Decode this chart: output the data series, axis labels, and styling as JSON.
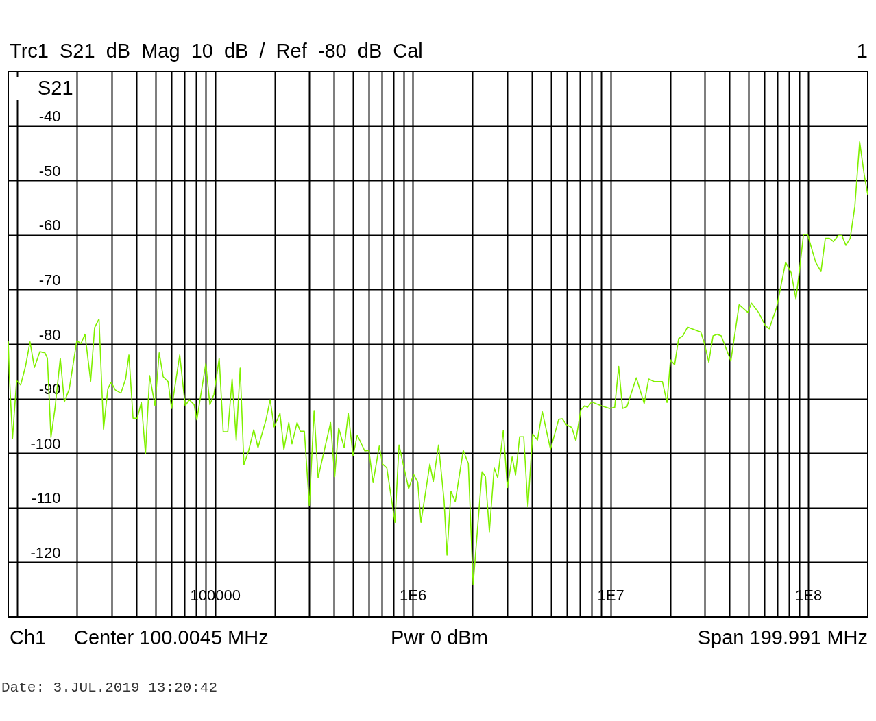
{
  "chart_data": {
    "type": "line",
    "title": "Trc1 S21 dB Mag 10 dB / Ref -80 dB Cal",
    "annotations": [
      "1",
      "Ch1",
      "Center 100.0045 MHz",
      "Pwr 0 dBm",
      "Span 199.991 MHz",
      "Date: 3.JUL.2019 13:20:42"
    ],
    "log": "x",
    "grid": true,
    "legend": "top left",
    "marker": "none",
    "line_style": "solid",
    "xlim": [
      9000,
      200000000
    ],
    "xticks": [
      {
        "value": 10000,
        "label": null
      },
      {
        "value": 20000,
        "label": null
      },
      {
        "value": 30000,
        "label": null
      },
      {
        "value": 40000,
        "label": null
      },
      {
        "value": 50000,
        "label": null
      },
      {
        "value": 60000,
        "label": null
      },
      {
        "value": 70000,
        "label": null
      },
      {
        "value": 80000,
        "label": null
      },
      {
        "value": 90000,
        "label": null
      },
      100000,
      {
        "value": 200000,
        "label": null
      },
      {
        "value": 300000,
        "label": null
      },
      {
        "value": 400000,
        "label": null
      },
      {
        "value": 500000,
        "label": null
      },
      {
        "value": 600000,
        "label": null
      },
      {
        "value": 700000,
        "label": null
      },
      {
        "value": 800000,
        "label": null
      },
      {
        "value": 900000,
        "label": null
      },
      {
        "value": 1000000,
        "label": "1E6"
      },
      {
        "value": 2000000,
        "label": null
      },
      {
        "value": 3000000,
        "label": null
      },
      {
        "value": 4000000,
        "label": null
      },
      {
        "value": 5000000,
        "label": null
      },
      {
        "value": 6000000,
        "label": null
      },
      {
        "value": 7000000,
        "label": null
      },
      {
        "value": 8000000,
        "label": null
      },
      {
        "value": 9000000,
        "label": null
      },
      {
        "value": 10000000,
        "label": "1E7"
      },
      {
        "value": 20000000,
        "label": null
      },
      {
        "value": 30000000,
        "label": null
      },
      {
        "value": 40000000,
        "label": null
      },
      {
        "value": 50000000,
        "label": null
      },
      {
        "value": 60000000,
        "label": null
      },
      {
        "value": 70000000,
        "label": null
      },
      {
        "value": 80000000,
        "label": null
      },
      {
        "value": 90000000,
        "label": null
      },
      {
        "value": 100000000,
        "label": "1E8"
      }
    ],
    "ylim": [
      -130,
      -30
    ],
    "yticks": [
      -120,
      -110,
      -100,
      -90,
      -80,
      -70,
      -60,
      -50,
      -40
    ],
    "x": [
      9000,
      9110,
      9460,
      9690,
      9920,
      10400,
      11000,
      11600,
      12200,
      13000,
      13800,
      14200,
      14800,
      15500,
      16500,
      17300,
      18300,
      20000,
      21000,
      22000,
      23500,
      24600,
      25900,
      27300,
      28700,
      29800,
      31300,
      33400,
      35300,
      36700,
      38500,
      40400,
      42400,
      44500,
      46700,
      49700,
      52200,
      54700,
      57900,
      60300,
      66300,
      70700,
      74100,
      78400,
      80900,
      89800,
      94200,
      98800,
      105000,
      110000,
      116000,
      122000,
      128000,
      134000,
      140000,
      148000,
      157000,
      165000,
      181000,
      190000,
      199000,
      213000,
      223000,
      236000,
      245000,
      260000,
      270000,
      283000,
      300000,
      317000,
      332000,
      384000,
      403000,
      422000,
      450000,
      472000,
      499000,
      524000,
      572000,
      600000,
      630000,
      677000,
      704000,
      739000,
      813000,
      852000,
      953000,
      1010000,
      1060000,
      1100000,
      1220000,
      1270000,
      1350000,
      1440000,
      1490000,
      1560000,
      1640000,
      1800000,
      1910000,
      2020000,
      2240000,
      2330000,
      2440000,
      2580000,
      2690000,
      2870000,
      3010000,
      3180000,
      3310000,
      3470000,
      3640000,
      3820000,
      4040000,
      4270000,
      4520000,
      4970000,
      5470000,
      5700000,
      5980000,
      6370000,
      6680000,
      7070000,
      7410000,
      7650000,
      8030000,
      8980000,
      9880000,
      10500000,
      11000000,
      11500000,
      12100000,
      13500000,
      14800000,
      15600000,
      16700000,
      18300000,
      19300000,
      20100000,
      21100000,
      22100000,
      23200000,
      24500000,
      28600000,
      29700000,
      31400000,
      33000000,
      34600000,
      36300000,
      40600000,
      44700000,
      49500000,
      51600000,
      56300000,
      60500000,
      63500000,
      69300000,
      76800000,
      81900000,
      86600000,
      90200000,
      94600000,
      99200000,
      109000000,
      116000000,
      122000000,
      128000000,
      134000000,
      142000000,
      148000000,
      155000000,
      163000000,
      172000000,
      182000000,
      192000000,
      200000000
    ],
    "series": [
      {
        "name": "S21",
        "color": "#80f000",
        "values": [
          -79.5,
          -85.4,
          -97.3,
          -91.9,
          -86.7,
          -87.5,
          -84.1,
          -79.6,
          -84.3,
          -81.4,
          -81.6,
          -82.6,
          -97.1,
          -91.9,
          -82.6,
          -90.6,
          -88.3,
          -79.4,
          -79.9,
          -78.2,
          -86.8,
          -77.0,
          -75.4,
          -95.6,
          -88.2,
          -87.0,
          -88.4,
          -89.0,
          -86.4,
          -82.0,
          -93.6,
          -93.6,
          -90.7,
          -100.1,
          -85.8,
          -91.3,
          -81.6,
          -86.0,
          -86.9,
          -91.8,
          -82.0,
          -91.3,
          -90.2,
          -91.1,
          -93.9,
          -83.6,
          -91.1,
          -89.2,
          -82.6,
          -96.1,
          -96.1,
          -86.4,
          -97.6,
          -84.4,
          -102.1,
          -99.5,
          -95.7,
          -99.0,
          -93.9,
          -90.2,
          -95.2,
          -92.7,
          -99.3,
          -94.4,
          -98.3,
          -94.4,
          -96.0,
          -96.0,
          -109.6,
          -92.2,
          -104.5,
          -94.4,
          -104.3,
          -95.4,
          -99.0,
          -92.7,
          -100.5,
          -96.7,
          -99.6,
          -99.5,
          -105.4,
          -98.7,
          -102.0,
          -102.7,
          -112.7,
          -98.5,
          -106.5,
          -103.9,
          -105.3,
          -112.7,
          -102.0,
          -105.2,
          -98.5,
          -108.7,
          -118.7,
          -107.0,
          -108.9,
          -99.5,
          -101.9,
          -124.1,
          -103.4,
          -104.3,
          -114.4,
          -102.7,
          -104.5,
          -95.8,
          -106.3,
          -100.7,
          -104.0,
          -97.0,
          -97.0,
          -109.9,
          -96.5,
          -97.6,
          -92.4,
          -99.3,
          -93.8,
          -93.7,
          -94.8,
          -95.3,
          -97.7,
          -92.1,
          -91.3,
          -91.6,
          -90.6,
          -91.3,
          -91.8,
          -91.6,
          -84.1,
          -91.8,
          -91.5,
          -86.2,
          -90.9,
          -86.4,
          -86.9,
          -86.9,
          -90.7,
          -82.9,
          -83.8,
          -79.0,
          -78.5,
          -76.9,
          -77.8,
          -79.6,
          -83.3,
          -78.5,
          -78.2,
          -78.5,
          -83.1,
          -72.8,
          -74.2,
          -72.5,
          -74.3,
          -76.6,
          -77.2,
          -73.2,
          -65.0,
          -66.9,
          -71.7,
          -66.6,
          -59.9,
          -59.9,
          -65.0,
          -66.7,
          -60.6,
          -60.6,
          -61.2,
          -60.1,
          -60.1,
          -61.9,
          -60.6,
          -54.8,
          -42.9,
          -49.0,
          -52.6
        ]
      }
    ]
  }
}
